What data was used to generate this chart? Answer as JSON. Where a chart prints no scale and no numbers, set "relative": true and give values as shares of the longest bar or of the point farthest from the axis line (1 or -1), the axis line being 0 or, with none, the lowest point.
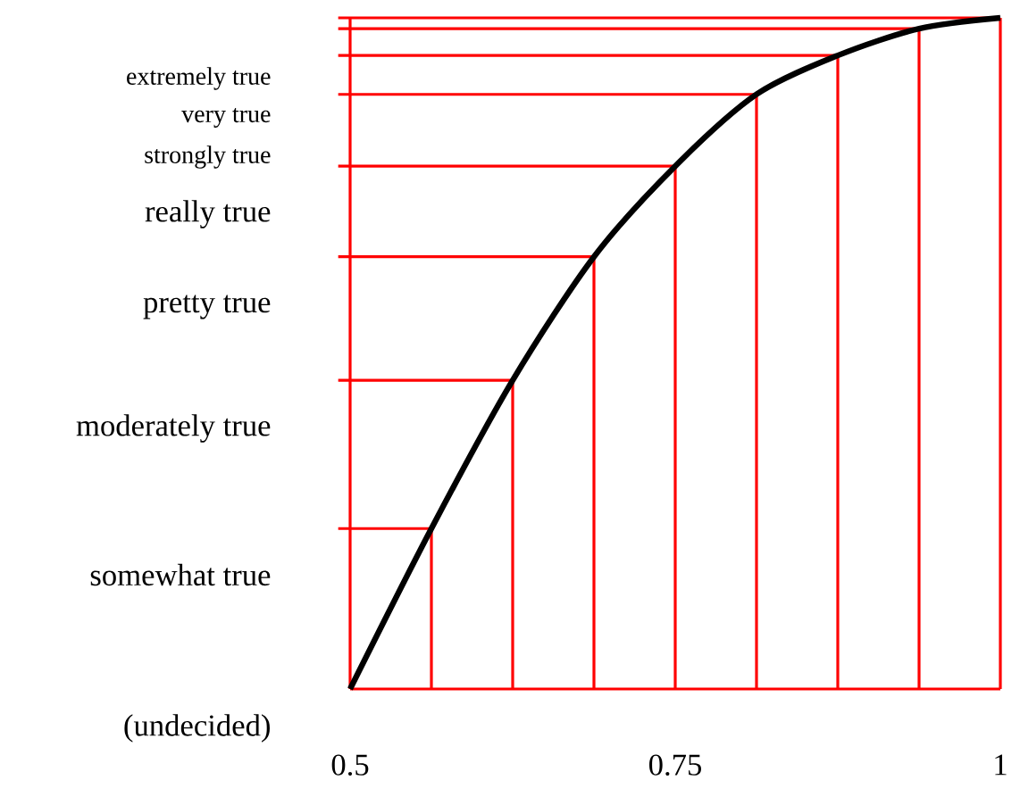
{
  "chart_data": {
    "type": "line",
    "relative": true,
    "x": [
      0.5,
      0.5625,
      0.625,
      0.6875,
      0.75,
      0.8125,
      0.875,
      0.9375,
      1
    ],
    "series": [
      {
        "color": "#000000",
        "values": [
          0,
          0.239,
          0.46,
          0.644,
          0.779,
          0.886,
          0.944,
          0.984,
          1
        ]
      }
    ],
    "marker": "none",
    "line_style": "solid",
    "xlim": [
      0.5,
      1
    ],
    "xticks": [
      0.5,
      0.75,
      1
    ],
    "ref_lines": [
      {
        "axis": "x",
        "value": 0.5625,
        "color": "#ff0000"
      },
      {
        "axis": "x",
        "value": 0.625,
        "color": "#ff0000"
      },
      {
        "axis": "x",
        "value": 0.6875,
        "color": "#ff0000"
      },
      {
        "axis": "x",
        "value": 0.75,
        "color": "#ff0000"
      },
      {
        "axis": "x",
        "value": 0.8125,
        "color": "#ff0000"
      },
      {
        "axis": "x",
        "value": 0.875,
        "color": "#ff0000"
      },
      {
        "axis": "x",
        "value": 0.9375,
        "color": "#ff0000"
      },
      {
        "axis": "x",
        "value": 1,
        "color": "#ff0000"
      },
      {
        "axis": "y",
        "value": 0.239,
        "color": "#ff0000"
      },
      {
        "axis": "y",
        "value": 0.46,
        "color": "#ff0000"
      },
      {
        "axis": "y",
        "value": 0.644,
        "color": "#ff0000"
      },
      {
        "axis": "y",
        "value": 0.779,
        "color": "#ff0000"
      },
      {
        "axis": "y",
        "value": 0.886,
        "color": "#ff0000"
      },
      {
        "axis": "y",
        "value": 0.944,
        "color": "#ff0000"
      },
      {
        "axis": "y",
        "value": 0.984,
        "color": "#ff0000"
      },
      {
        "axis": "y",
        "value": 1,
        "color": "#ff0000"
      }
    ],
    "annotations": [
      "extremely true",
      "very true",
      "strongly true",
      "really true",
      "pretty true",
      "moderately true",
      "somewhat true",
      "(undecided)"
    ]
  }
}
